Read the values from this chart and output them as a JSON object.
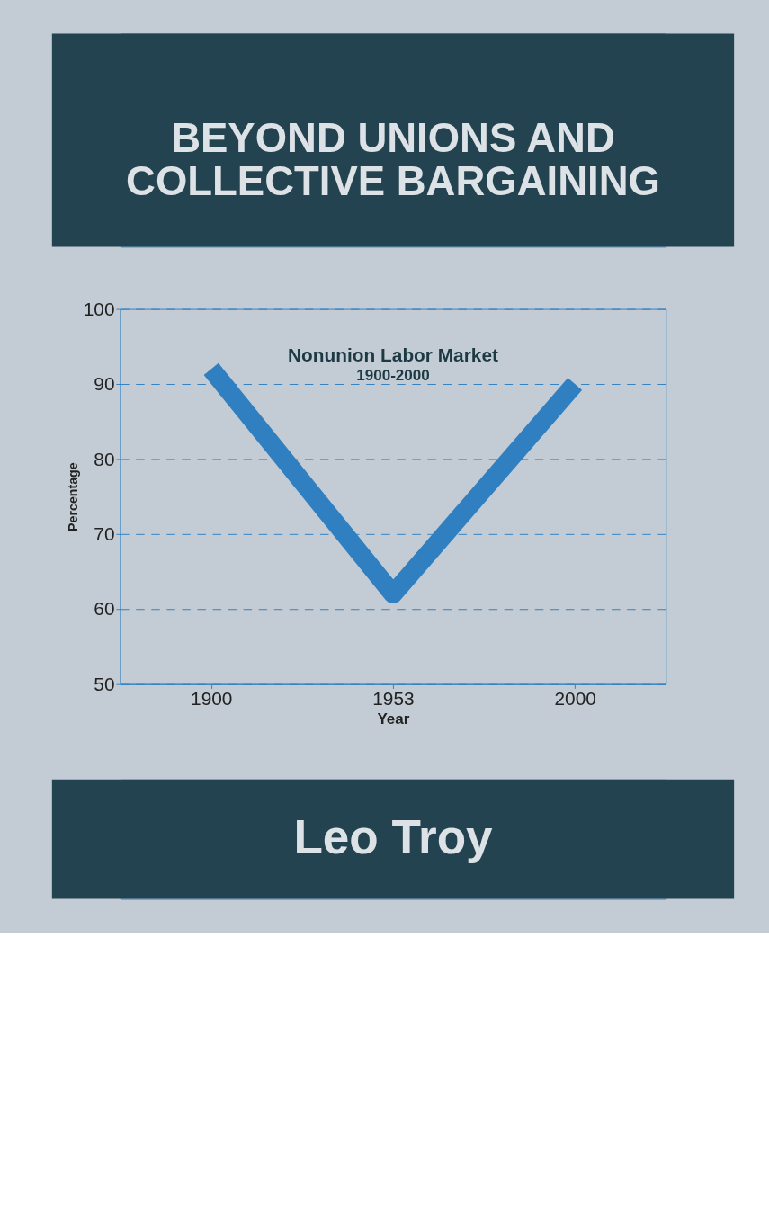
{
  "chart_data": {
    "type": "line",
    "title": "Nonunion Labor Market",
    "subtitle": "1900-2000",
    "xlabel": "Year",
    "ylabel": "Percentage",
    "categories": [
      "1900",
      "1953",
      "2000"
    ],
    "series": [
      {
        "color": "#2f7fc1",
        "values": [
          92,
          62,
          90
        ]
      }
    ],
    "ylim": [
      50,
      100
    ],
    "yticks": [
      50,
      60,
      70,
      80,
      90,
      100
    ],
    "grid": "y",
    "line_style": "solid",
    "marker": "none",
    "annotations": [
      "BEYOND UNIONS AND COLLECTIVE BARGAINING",
      "Leo Troy"
    ]
  }
}
